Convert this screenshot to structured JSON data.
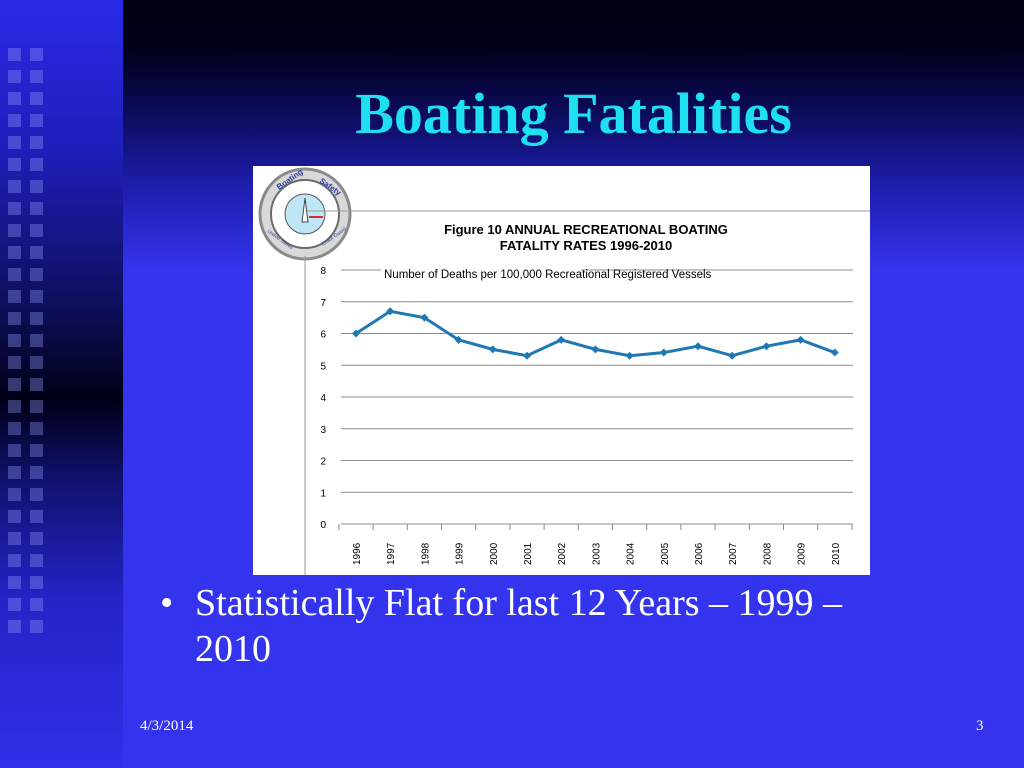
{
  "slide": {
    "title": "Boating Fatalities",
    "bullet": "Statistically Flat for last 12 Years – 1999 – 2010",
    "bullet_marker": "•",
    "footer_date": "4/3/2014",
    "page_number": "3"
  },
  "logo": {
    "top_left_text": "Boating",
    "top_right_text": "Safety",
    "bottom_left_text": "United States",
    "bottom_right_text": "Coast Guard"
  },
  "colors": {
    "background": "#3434ee",
    "title": "#1ee0f0",
    "series": "#1f78b4"
  },
  "chart_data": {
    "type": "line",
    "title_line1": "Figure 10  ANNUAL RECREATIONAL BOATING",
    "title_line2": "FATALITY RATES 1996-2010",
    "annotation": "Number of Deaths per 100,000  Recreational Registered Vessels",
    "x": [
      "1996",
      "1997",
      "1998",
      "1999",
      "2000",
      "2001",
      "2002",
      "2003",
      "2004",
      "2005",
      "2006",
      "2007",
      "2008",
      "2009",
      "2010"
    ],
    "series": [
      {
        "values": [
          6.0,
          6.7,
          6.5,
          5.8,
          5.5,
          5.3,
          5.8,
          5.5,
          5.3,
          5.4,
          5.6,
          5.3,
          5.6,
          5.8,
          5.4
        ]
      }
    ],
    "yticks": [
      "0",
      "1",
      "2",
      "3",
      "4",
      "5",
      "6",
      "7",
      "8"
    ],
    "ylim": [
      0,
      8
    ],
    "grid": true
  }
}
